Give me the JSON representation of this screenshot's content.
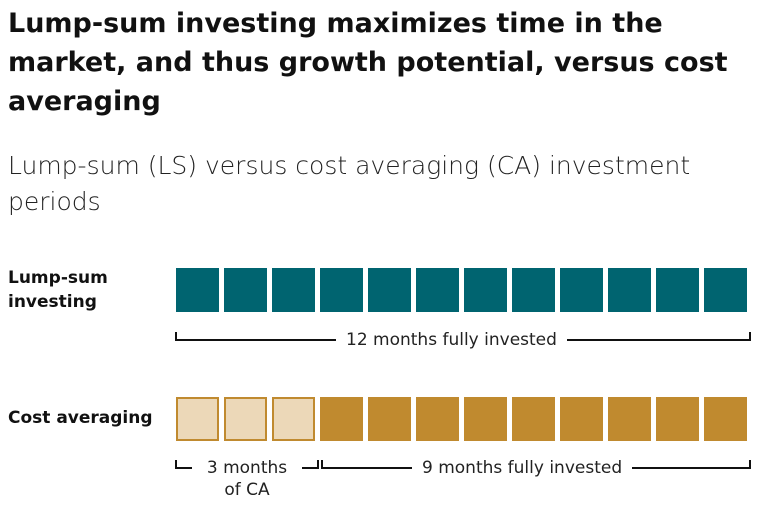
{
  "title": "Lump-sum investing maximizes time in the market, and thus growth potential, versus cost averaging",
  "subtitle": "Lump-sum (LS) versus cost averaging (CA) investment periods",
  "rows": [
    {
      "label": "Lump-sum investing",
      "months": 12,
      "ca_months": 0
    },
    {
      "label": "Cost averaging",
      "months": 12,
      "ca_months": 3
    }
  ],
  "brackets": {
    "ls_invested": "12 months fully invested",
    "ca_period_line1": "3 months",
    "ca_period_line2": "of CA",
    "ca_invested": "9 months fully invested"
  },
  "colors": {
    "lump_sum": "#006470",
    "cost_averaging_period": "#ecd8b8",
    "cost_averaging_invested": "#c08a2f"
  }
}
